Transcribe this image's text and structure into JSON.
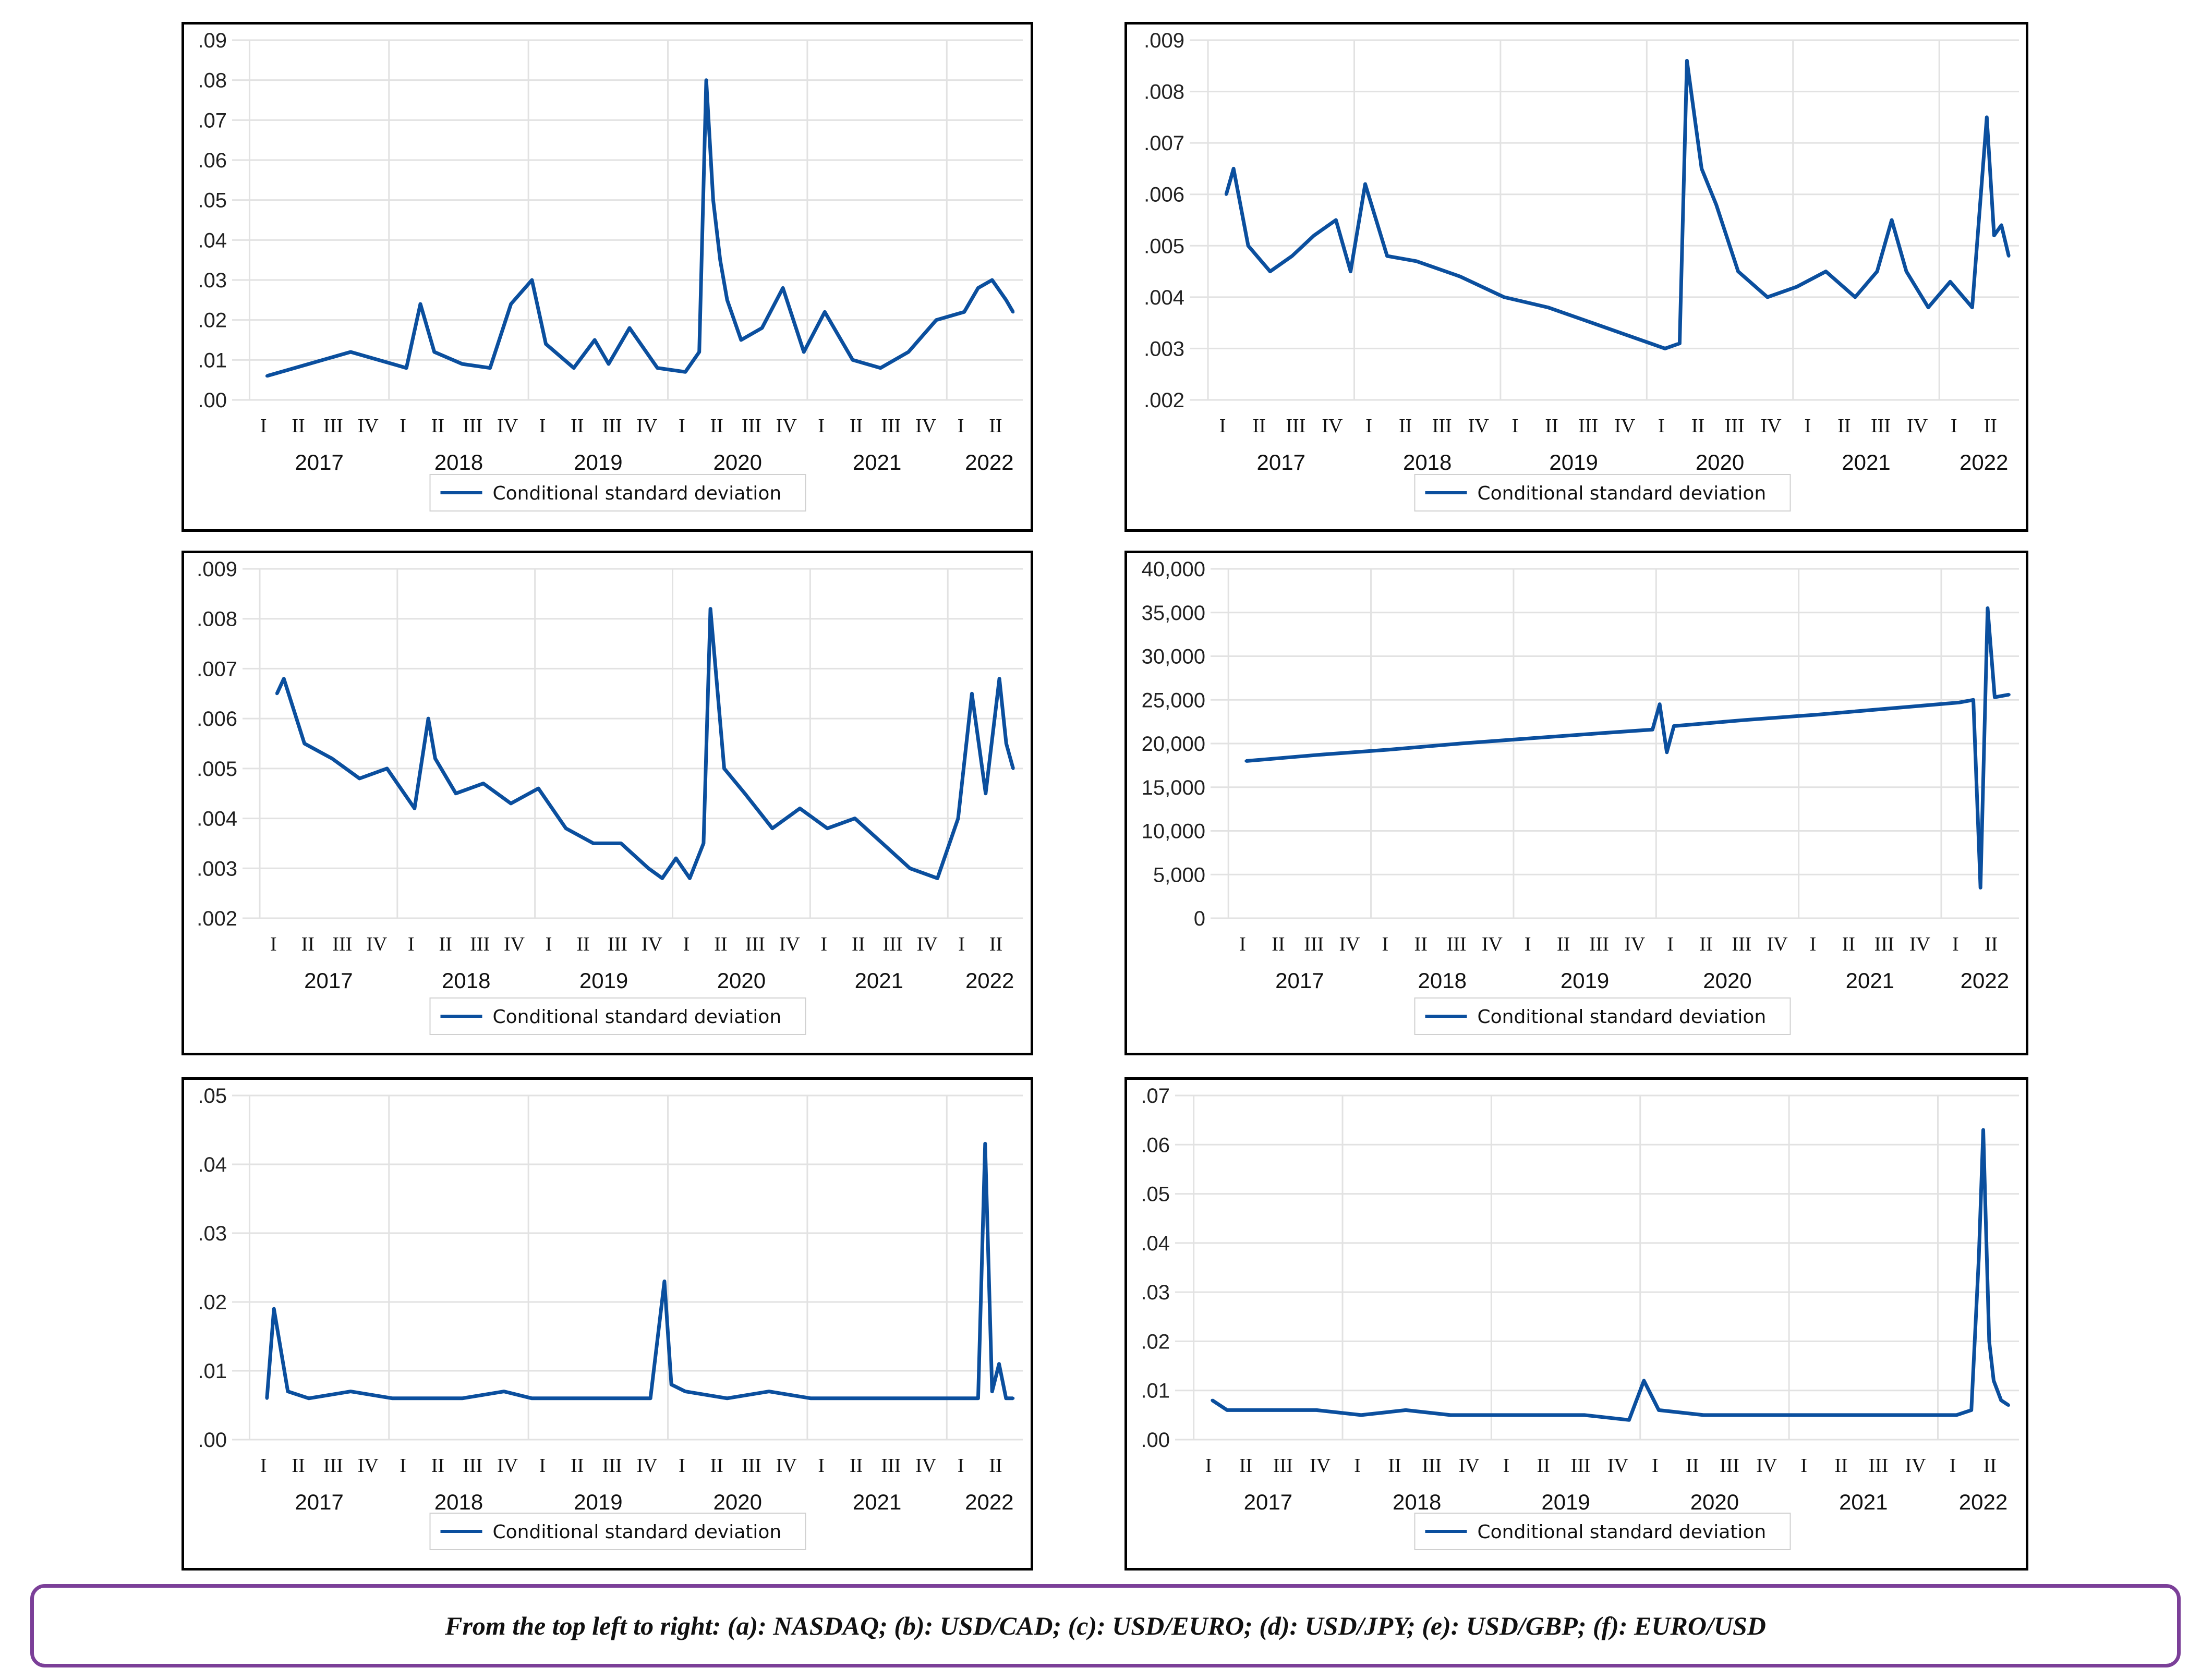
{
  "caption": "From the top left to right: (a): NASDAQ; (b): USD/CAD; (c): USD/EURO; (d): USD/JPY; (e): USD/GBP; (f): EURO/USD",
  "colors": {
    "series": "#0b4f9e",
    "grid": "#e2e2e2",
    "frame": "#000000",
    "caption_border": "#7b3f98"
  },
  "chart_data": [
    {
      "id": "a",
      "type": "line",
      "legend": "Conditional standard deviation",
      "ylim": [
        0,
        0.09
      ],
      "yticks": [
        ".00",
        ".01",
        ".02",
        ".03",
        ".04",
        ".05",
        ".06",
        ".07",
        ".08",
        ".09"
      ],
      "quarters": [
        "I",
        "II",
        "III",
        "IV",
        "I",
        "II",
        "III",
        "IV",
        "I",
        "II",
        "III",
        "IV",
        "I",
        "II",
        "III",
        "IV",
        "I",
        "II",
        "III",
        "IV",
        "I",
        "II"
      ],
      "years": [
        "2017",
        "2018",
        "2019",
        "2020",
        "2021",
        "2022"
      ],
      "x": [
        2017.0,
        2017.3,
        2017.6,
        2017.9,
        2018.0,
        2018.1,
        2018.2,
        2018.4,
        2018.6,
        2018.75,
        2018.9,
        2019.0,
        2019.2,
        2019.35,
        2019.45,
        2019.6,
        2019.8,
        2020.0,
        2020.1,
        2020.15,
        2020.2,
        2020.25,
        2020.3,
        2020.4,
        2020.55,
        2020.7,
        2020.85,
        2021.0,
        2021.2,
        2021.4,
        2021.6,
        2021.8,
        2022.0,
        2022.1,
        2022.2,
        2022.3,
        2022.35
      ],
      "values": [
        0.006,
        0.009,
        0.012,
        0.009,
        0.008,
        0.024,
        0.012,
        0.009,
        0.008,
        0.024,
        0.03,
        0.014,
        0.008,
        0.015,
        0.009,
        0.018,
        0.008,
        0.007,
        0.012,
        0.08,
        0.05,
        0.035,
        0.025,
        0.015,
        0.018,
        0.028,
        0.012,
        0.022,
        0.01,
        0.008,
        0.012,
        0.02,
        0.022,
        0.028,
        0.03,
        0.025,
        0.022
      ]
    },
    {
      "id": "b",
      "type": "line",
      "legend": "Conditional standard deviation",
      "ylim": [
        0.002,
        0.009
      ],
      "yticks": [
        ".002",
        ".003",
        ".004",
        ".005",
        ".006",
        ".007",
        ".008",
        ".009"
      ],
      "quarters": [
        "I",
        "II",
        "III",
        "IV",
        "I",
        "II",
        "III",
        "IV",
        "I",
        "II",
        "III",
        "IV",
        "I",
        "II",
        "III",
        "IV",
        "I",
        "II",
        "III",
        "IV",
        "I",
        "II"
      ],
      "years": [
        "2017",
        "2018",
        "2019",
        "2020",
        "2021",
        "2022"
      ],
      "x": [
        2017.0,
        2017.05,
        2017.15,
        2017.3,
        2017.45,
        2017.6,
        2017.75,
        2017.85,
        2017.95,
        2018.1,
        2018.3,
        2018.6,
        2018.9,
        2019.2,
        2019.5,
        2019.8,
        2020.0,
        2020.1,
        2020.15,
        2020.25,
        2020.35,
        2020.5,
        2020.7,
        2020.9,
        2021.1,
        2021.3,
        2021.45,
        2021.55,
        2021.65,
        2021.8,
        2021.95,
        2022.1,
        2022.2,
        2022.25,
        2022.3,
        2022.35
      ],
      "values": [
        0.006,
        0.0065,
        0.005,
        0.0045,
        0.0048,
        0.0052,
        0.0055,
        0.0045,
        0.0062,
        0.0048,
        0.0047,
        0.0044,
        0.004,
        0.0038,
        0.0035,
        0.0032,
        0.003,
        0.0031,
        0.0086,
        0.0065,
        0.0058,
        0.0045,
        0.004,
        0.0042,
        0.0045,
        0.004,
        0.0045,
        0.0055,
        0.0045,
        0.0038,
        0.0043,
        0.0038,
        0.0075,
        0.0052,
        0.0054,
        0.0048
      ]
    },
    {
      "id": "c",
      "type": "line",
      "legend": "Conditional standard deviation",
      "ylim": [
        0.002,
        0.009
      ],
      "yticks": [
        ".002",
        ".003",
        ".004",
        ".005",
        ".006",
        ".007",
        ".008",
        ".009"
      ],
      "quarters": [
        "I",
        "II",
        "III",
        "IV",
        "I",
        "II",
        "III",
        "IV",
        "I",
        "II",
        "III",
        "IV",
        "I",
        "II",
        "III",
        "IV",
        "I",
        "II",
        "III",
        "IV",
        "I",
        "II"
      ],
      "years": [
        "2017",
        "2018",
        "2019",
        "2020",
        "2021",
        "2022"
      ],
      "x": [
        2017.0,
        2017.05,
        2017.2,
        2017.4,
        2017.6,
        2017.8,
        2018.0,
        2018.1,
        2018.15,
        2018.3,
        2018.5,
        2018.7,
        2018.9,
        2019.1,
        2019.3,
        2019.5,
        2019.7,
        2019.8,
        2019.9,
        2020.0,
        2020.1,
        2020.15,
        2020.25,
        2020.4,
        2020.6,
        2020.8,
        2021.0,
        2021.2,
        2021.4,
        2021.6,
        2021.8,
        2021.95,
        2022.05,
        2022.15,
        2022.25,
        2022.3,
        2022.35
      ],
      "values": [
        0.0065,
        0.0068,
        0.0055,
        0.0052,
        0.0048,
        0.005,
        0.0042,
        0.006,
        0.0052,
        0.0045,
        0.0047,
        0.0043,
        0.0046,
        0.0038,
        0.0035,
        0.0035,
        0.003,
        0.0028,
        0.0032,
        0.0028,
        0.0035,
        0.0082,
        0.005,
        0.0045,
        0.0038,
        0.0042,
        0.0038,
        0.004,
        0.0035,
        0.003,
        0.0028,
        0.004,
        0.0065,
        0.0045,
        0.0068,
        0.0055,
        0.005
      ]
    },
    {
      "id": "d",
      "type": "line",
      "legend": "Conditional standard deviation",
      "ylim": [
        0,
        40000
      ],
      "yticks": [
        "0",
        "5,000",
        "10,000",
        "15,000",
        "20,000",
        "25,000",
        "30,000",
        "35,000",
        "40,000"
      ],
      "quarters": [
        "I",
        "II",
        "III",
        "IV",
        "I",
        "II",
        "III",
        "IV",
        "I",
        "II",
        "III",
        "IV",
        "I",
        "II",
        "III",
        "IV",
        "I",
        "II",
        "III",
        "IV",
        "I",
        "II"
      ],
      "years": [
        "2017",
        "2018",
        "2019",
        "2020",
        "2021",
        "2022"
      ],
      "x": [
        2017.0,
        2017.5,
        2018.0,
        2018.5,
        2019.0,
        2019.5,
        2019.85,
        2019.9,
        2019.95,
        2020.0,
        2020.5,
        2021.0,
        2021.5,
        2022.0,
        2022.1,
        2022.15,
        2022.2,
        2022.25,
        2022.35
      ],
      "values": [
        18000,
        18700,
        19300,
        20000,
        20600,
        21200,
        21600,
        24500,
        19000,
        22000,
        22700,
        23300,
        24000,
        24700,
        25000,
        3500,
        35500,
        25300,
        25600
      ]
    },
    {
      "id": "e",
      "type": "line",
      "legend": "Conditional standard deviation",
      "ylim": [
        0,
        0.05
      ],
      "yticks": [
        ".00",
        ".01",
        ".02",
        ".03",
        ".04",
        ".05"
      ],
      "quarters": [
        "I",
        "II",
        "III",
        "IV",
        "I",
        "II",
        "III",
        "IV",
        "I",
        "II",
        "III",
        "IV",
        "I",
        "II",
        "III",
        "IV",
        "I",
        "II",
        "III",
        "IV",
        "I",
        "II"
      ],
      "years": [
        "2017",
        "2018",
        "2019",
        "2020",
        "2021",
        "2022"
      ],
      "x": [
        2017.0,
        2017.05,
        2017.15,
        2017.3,
        2017.6,
        2017.9,
        2018.1,
        2018.4,
        2018.7,
        2018.9,
        2019.2,
        2019.5,
        2019.75,
        2019.85,
        2019.9,
        2020.0,
        2020.3,
        2020.6,
        2020.9,
        2021.2,
        2021.5,
        2021.8,
        2022.0,
        2022.1,
        2022.15,
        2022.2,
        2022.25,
        2022.3,
        2022.35
      ],
      "values": [
        0.006,
        0.019,
        0.007,
        0.006,
        0.007,
        0.006,
        0.006,
        0.006,
        0.007,
        0.006,
        0.006,
        0.006,
        0.006,
        0.023,
        0.008,
        0.007,
        0.006,
        0.007,
        0.006,
        0.006,
        0.006,
        0.006,
        0.006,
        0.006,
        0.043,
        0.007,
        0.011,
        0.006,
        0.006
      ]
    },
    {
      "id": "f",
      "type": "line",
      "legend": "Conditional standard deviation",
      "ylim": [
        0,
        0.07
      ],
      "yticks": [
        ".00",
        ".01",
        ".02",
        ".03",
        ".04",
        ".05",
        ".06",
        ".07"
      ],
      "quarters": [
        "I",
        "II",
        "III",
        "IV",
        "I",
        "II",
        "III",
        "IV",
        "I",
        "II",
        "III",
        "IV",
        "I",
        "II",
        "III",
        "IV",
        "I",
        "II",
        "III",
        "IV",
        "I",
        "II"
      ],
      "years": [
        "2017",
        "2018",
        "2019",
        "2020",
        "2021",
        "2022"
      ],
      "x": [
        2017.0,
        2017.1,
        2017.4,
        2017.7,
        2018.0,
        2018.3,
        2018.6,
        2018.9,
        2019.2,
        2019.5,
        2019.8,
        2019.9,
        2020.0,
        2020.3,
        2020.6,
        2020.9,
        2021.2,
        2021.5,
        2021.8,
        2022.0,
        2022.1,
        2022.15,
        2022.18,
        2022.22,
        2022.25,
        2022.3,
        2022.35
      ],
      "values": [
        0.008,
        0.006,
        0.006,
        0.006,
        0.005,
        0.006,
        0.005,
        0.005,
        0.005,
        0.005,
        0.004,
        0.012,
        0.006,
        0.005,
        0.005,
        0.005,
        0.005,
        0.005,
        0.005,
        0.005,
        0.006,
        0.037,
        0.063,
        0.02,
        0.012,
        0.008,
        0.007
      ]
    }
  ]
}
